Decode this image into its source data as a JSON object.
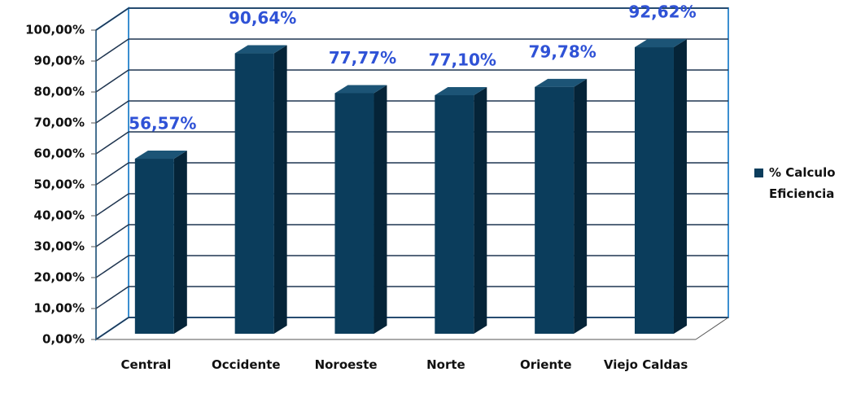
{
  "chart_data": {
    "type": "bar3d",
    "categories": [
      "Central",
      "Occidente",
      "Noroeste",
      "Norte",
      "Oriente",
      "Viejo Caldas"
    ],
    "series": [
      {
        "name": "% Calculo Eficiencia",
        "color": "#0b3d5c",
        "values": [
          56.57,
          90.64,
          77.77,
          77.1,
          79.78,
          92.62
        ],
        "value_labels": [
          "56,57%",
          "90,64%",
          "77,77%",
          "77,10%",
          "79,78%",
          "92,62%"
        ]
      }
    ],
    "ylim": [
      0,
      100
    ],
    "yticks": [
      {
        "value": 0,
        "label": "0,00%"
      },
      {
        "value": 10,
        "label": "10,00%"
      },
      {
        "value": 20,
        "label": "20,00%"
      },
      {
        "value": 30,
        "label": "30,00%"
      },
      {
        "value": 40,
        "label": "40,00%"
      },
      {
        "value": 50,
        "label": "50,00%"
      },
      {
        "value": 60,
        "label": "60,00%"
      },
      {
        "value": 70,
        "label": "70,00%"
      },
      {
        "value": 80,
        "label": "80,00%"
      },
      {
        "value": 90,
        "label": "90,00%"
      },
      {
        "value": 100,
        "label": "100,00%"
      }
    ],
    "grid": true,
    "legend": "right"
  }
}
